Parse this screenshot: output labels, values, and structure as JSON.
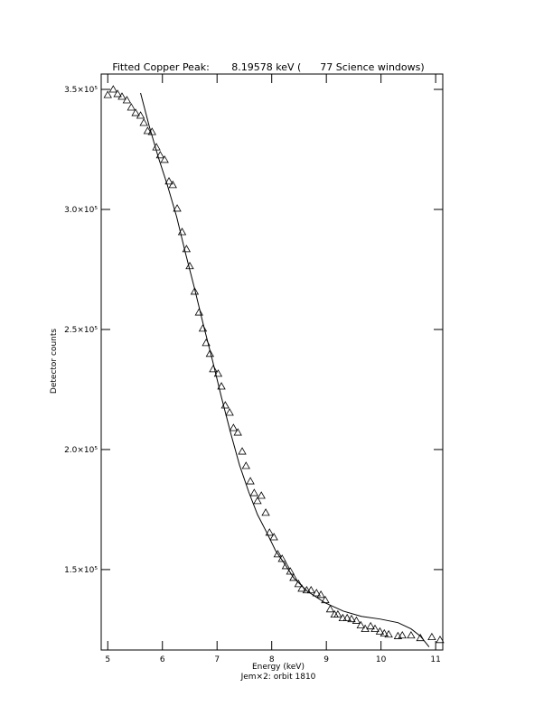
{
  "chart_data": {
    "type": "scatter",
    "title": "Fitted Copper Peak:       8.19578 keV (      77 Science windows)",
    "x_label": "Energy (keV)",
    "subtitle": "Jem×2: orbit 1810",
    "y_label": "Detector counts",
    "xlim": [
      4.88,
      11.13
    ],
    "ylim": [
      116500,
      356400
    ],
    "xticks": [
      5,
      6,
      7,
      8,
      9,
      10,
      11
    ],
    "yticks": [
      {
        "value": 150000,
        "label": "1.5×10⁵"
      },
      {
        "value": 200000,
        "label": "2.0×10⁵"
      },
      {
        "value": 250000,
        "label": "2.5×10⁵"
      },
      {
        "value": 300000,
        "label": "3.0×10⁵"
      },
      {
        "value": 350000,
        "label": "3.5×10⁵"
      }
    ],
    "series": [
      {
        "type": "scatter",
        "color": "#000000",
        "x": [
          5.0,
          5.1,
          5.18,
          5.26,
          5.35,
          5.43,
          5.51,
          5.6,
          5.66,
          5.73,
          5.81,
          5.89,
          5.96,
          6.04,
          6.12,
          6.19,
          6.27,
          6.36,
          6.44,
          6.5,
          6.59,
          6.67,
          6.74,
          6.8,
          6.87,
          6.93,
          7.02,
          7.08,
          7.15,
          7.23,
          7.3,
          7.38,
          7.46,
          7.53,
          7.61,
          7.68,
          7.74,
          7.81,
          7.89,
          7.96,
          8.04,
          8.11,
          8.19,
          8.26,
          8.34,
          8.4,
          8.49,
          8.55,
          8.64,
          8.72,
          8.82,
          8.9,
          8.98,
          9.07,
          9.15,
          9.21,
          9.3,
          9.38,
          9.46,
          9.55,
          9.63,
          9.71,
          9.81,
          9.89,
          9.98,
          10.06,
          10.14,
          10.31,
          10.39,
          10.55,
          10.72,
          10.93,
          11.08
        ],
        "values": [
          347700,
          350000,
          348100,
          347000,
          345500,
          342500,
          340200,
          339100,
          336100,
          332700,
          332300,
          325900,
          322600,
          320700,
          311700,
          310200,
          300400,
          290600,
          283500,
          276400,
          265800,
          257100,
          250400,
          244400,
          239900,
          233500,
          231600,
          226300,
          218400,
          215400,
          209000,
          207100,
          199200,
          193200,
          186800,
          181900,
          178600,
          180800,
          173700,
          165400,
          163500,
          156400,
          154500,
          151500,
          149200,
          146600,
          144000,
          142100,
          141400,
          141400,
          140200,
          139500,
          137300,
          133500,
          131300,
          131300,
          129800,
          129800,
          129400,
          128700,
          126800,
          125300,
          126400,
          125300,
          124200,
          123400,
          123000,
          122300,
          122600,
          122600,
          121500,
          121900,
          120700
        ]
      },
      {
        "type": "line",
        "color": "#000000",
        "x": [
          5.6,
          5.76,
          5.93,
          6.09,
          6.26,
          6.42,
          6.59,
          6.75,
          6.92,
          7.08,
          7.25,
          7.41,
          7.58,
          7.74,
          7.91,
          8.07,
          8.24,
          8.4,
          8.65,
          8.98,
          9.31,
          9.64,
          9.98,
          10.31,
          10.55,
          10.72,
          10.88
        ],
        "values": [
          348500,
          334600,
          321400,
          310200,
          297000,
          282000,
          266900,
          251900,
          236800,
          221800,
          206800,
          193600,
          182300,
          172900,
          165400,
          157900,
          152300,
          146600,
          141000,
          136100,
          132700,
          130500,
          129400,
          127900,
          125300,
          122300,
          117800
        ]
      }
    ]
  }
}
